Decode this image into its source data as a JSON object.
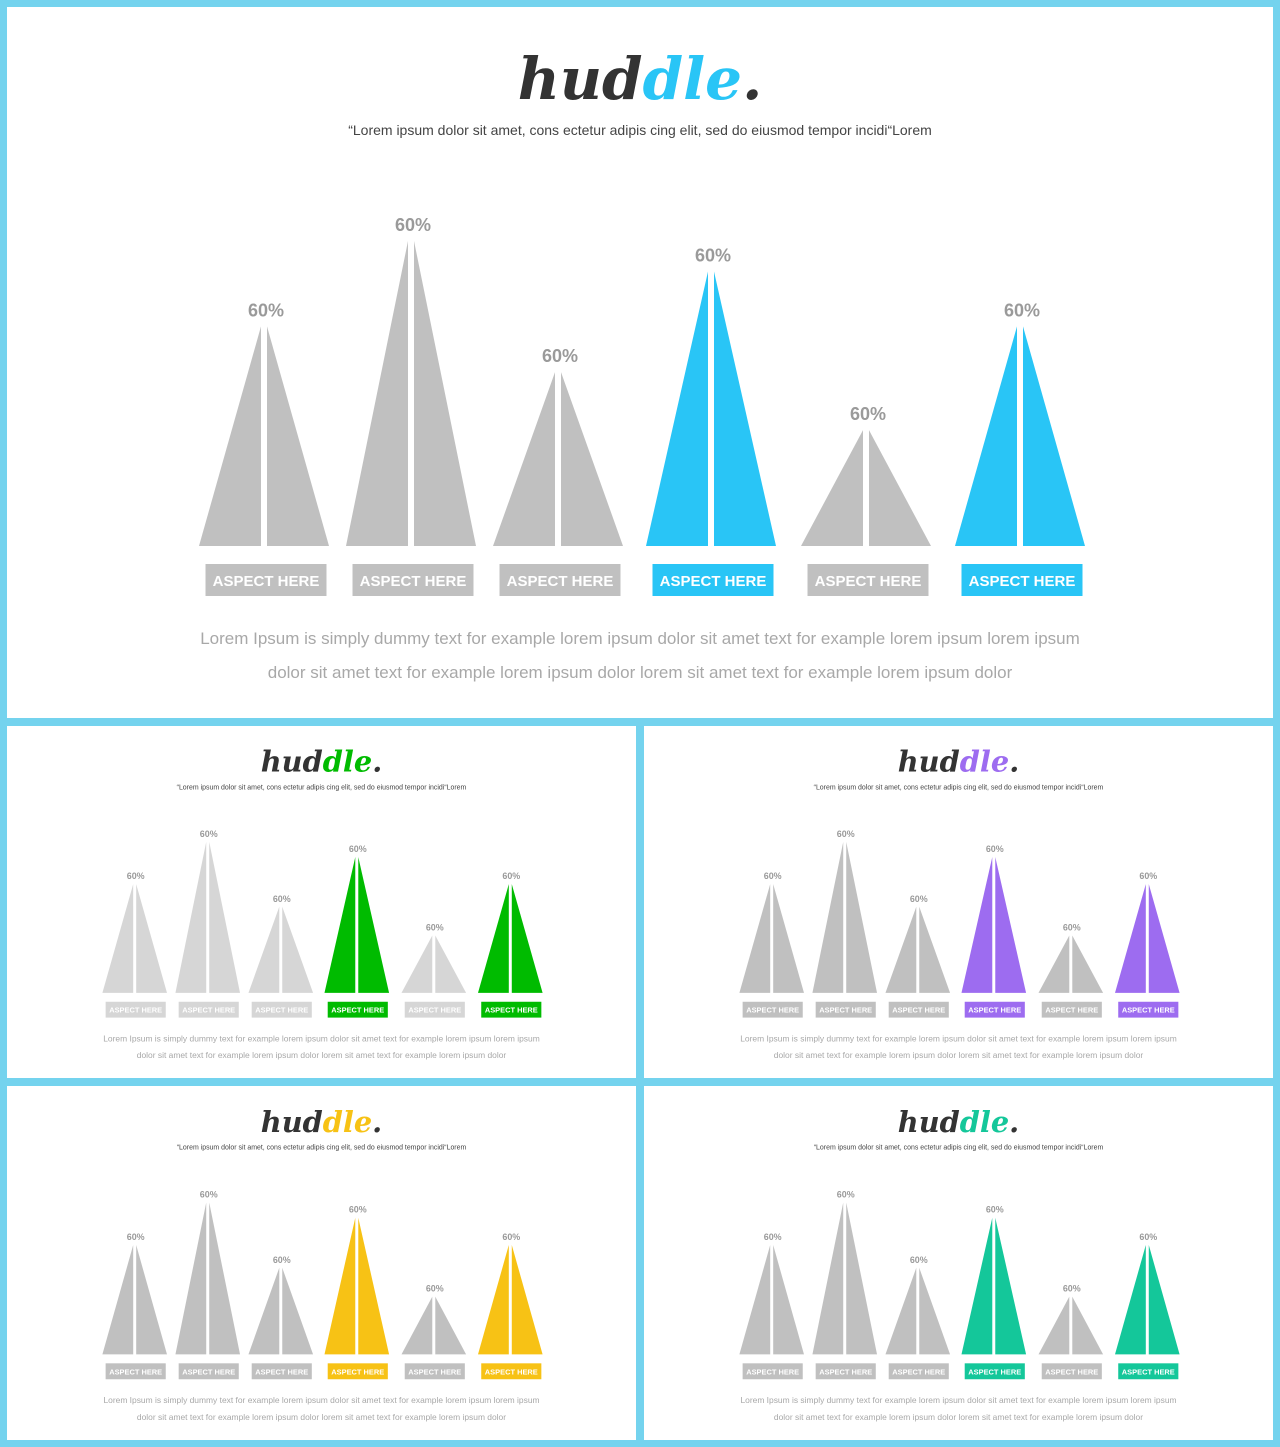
{
  "slides": [
    {
      "key": "main",
      "logo_prefix": "hud",
      "logo_accent": "dle",
      "logo_suffix": ".",
      "subtitle": "“Lorem ipsum dolor sit amet, cons ectetur adipis cing elit, sed do eiusmod tempor incidi“Lorem",
      "description_lines": [
        "Lorem Ipsum is simply dummy text for example lorem ipsum dolor sit amet text for example lorem ipsum lorem ipsum",
        "dolor sit amet text for example lorem ipsum dolor lorem sit amet text for example lorem ipsum dolor"
      ],
      "accent_color": "#29c5f6",
      "base_color": "#c0c0c0",
      "chart_data": {
        "type": "bar",
        "mark": "triangle",
        "categories": [
          "ASPECT HERE",
          "ASPECT HERE",
          "ASPECT HERE",
          "ASPECT HERE",
          "ASPECT HERE",
          "ASPECT HERE"
        ],
        "value_labels": [
          "60%",
          "60%",
          "60%",
          "60%",
          "60%",
          "60%"
        ],
        "relative_heights": [
          0.72,
          1.0,
          0.57,
          0.9,
          0.38,
          0.72
        ],
        "highlighted": [
          false,
          false,
          false,
          true,
          false,
          true
        ]
      }
    },
    {
      "key": "green",
      "logo_prefix": "hud",
      "logo_accent": "dle",
      "logo_suffix": ".",
      "subtitle": "“Lorem ipsum dolor sit amet, cons ectetur adipis cing elit, sed do eiusmod tempor incidi“Lorem",
      "description_lines": [
        "Lorem Ipsum is simply dummy text for example lorem ipsum dolor sit amet text for example lorem ipsum lorem ipsum",
        "dolor sit amet text for example lorem ipsum dolor lorem sit amet text for example lorem ipsum dolor"
      ],
      "accent_color": "#00bb00",
      "base_color": "#d6d6d6",
      "chart_data": {
        "type": "bar",
        "mark": "triangle",
        "categories": [
          "ASPECT HERE",
          "ASPECT HERE",
          "ASPECT HERE",
          "ASPECT HERE",
          "ASPECT HERE",
          "ASPECT HERE"
        ],
        "value_labels": [
          "60%",
          "60%",
          "60%",
          "60%",
          "60%",
          "60%"
        ],
        "relative_heights": [
          0.72,
          1.0,
          0.57,
          0.9,
          0.38,
          0.72
        ],
        "highlighted": [
          false,
          false,
          false,
          true,
          false,
          true
        ]
      }
    },
    {
      "key": "purple",
      "logo_prefix": "hud",
      "logo_accent": "dle",
      "logo_suffix": ".",
      "subtitle": "“Lorem ipsum dolor sit amet, cons ectetur adipis cing elit, sed do eiusmod tempor incidi“Lorem",
      "description_lines": [
        "Lorem Ipsum is simply dummy text for example lorem ipsum dolor sit amet text for example lorem ipsum lorem ipsum",
        "dolor sit amet text for example lorem ipsum dolor lorem sit amet text for example lorem ipsum dolor"
      ],
      "accent_color": "#9d6cf0",
      "base_color": "#c0c0c0",
      "chart_data": {
        "type": "bar",
        "mark": "triangle",
        "categories": [
          "ASPECT HERE",
          "ASPECT HERE",
          "ASPECT HERE",
          "ASPECT HERE",
          "ASPECT HERE",
          "ASPECT HERE"
        ],
        "value_labels": [
          "60%",
          "60%",
          "60%",
          "60%",
          "60%",
          "60%"
        ],
        "relative_heights": [
          0.72,
          1.0,
          0.57,
          0.9,
          0.38,
          0.72
        ],
        "highlighted": [
          false,
          false,
          false,
          true,
          false,
          true
        ]
      }
    },
    {
      "key": "yellow",
      "logo_prefix": "hud",
      "logo_accent": "dle",
      "logo_suffix": ".",
      "subtitle": "“Lorem ipsum dolor sit amet, cons ectetur adipis cing elit, sed do eiusmod tempor incidi“Lorem",
      "description_lines": [
        "Lorem Ipsum is simply dummy text for example lorem ipsum dolor sit amet text for example lorem ipsum lorem ipsum",
        "dolor sit amet text for example lorem ipsum dolor lorem sit amet text for example lorem ipsum dolor"
      ],
      "accent_color": "#f7c215",
      "base_color": "#c0c0c0",
      "chart_data": {
        "type": "bar",
        "mark": "triangle",
        "categories": [
          "ASPECT HERE",
          "ASPECT HERE",
          "ASPECT HERE",
          "ASPECT HERE",
          "ASPECT HERE",
          "ASPECT HERE"
        ],
        "value_labels": [
          "60%",
          "60%",
          "60%",
          "60%",
          "60%",
          "60%"
        ],
        "relative_heights": [
          0.72,
          1.0,
          0.57,
          0.9,
          0.38,
          0.72
        ],
        "highlighted": [
          false,
          false,
          false,
          true,
          false,
          true
        ]
      }
    },
    {
      "key": "teal",
      "logo_prefix": "hud",
      "logo_accent": "dle",
      "logo_suffix": ".",
      "subtitle": "“Lorem ipsum dolor sit amet, cons ectetur adipis cing elit, sed do eiusmod tempor incidi“Lorem",
      "description_lines": [
        "Lorem Ipsum is simply dummy text for example lorem ipsum dolor sit amet text for example lorem ipsum lorem ipsum",
        "dolor sit amet text for example lorem ipsum dolor lorem sit amet text for example lorem ipsum dolor"
      ],
      "accent_color": "#14c79a",
      "base_color": "#c0c0c0",
      "chart_data": {
        "type": "bar",
        "mark": "triangle",
        "categories": [
          "ASPECT HERE",
          "ASPECT HERE",
          "ASPECT HERE",
          "ASPECT HERE",
          "ASPECT HERE",
          "ASPECT HERE"
        ],
        "value_labels": [
          "60%",
          "60%",
          "60%",
          "60%",
          "60%",
          "60%"
        ],
        "relative_heights": [
          0.72,
          1.0,
          0.57,
          0.9,
          0.38,
          0.72
        ],
        "highlighted": [
          false,
          false,
          false,
          true,
          false,
          true
        ]
      }
    }
  ]
}
